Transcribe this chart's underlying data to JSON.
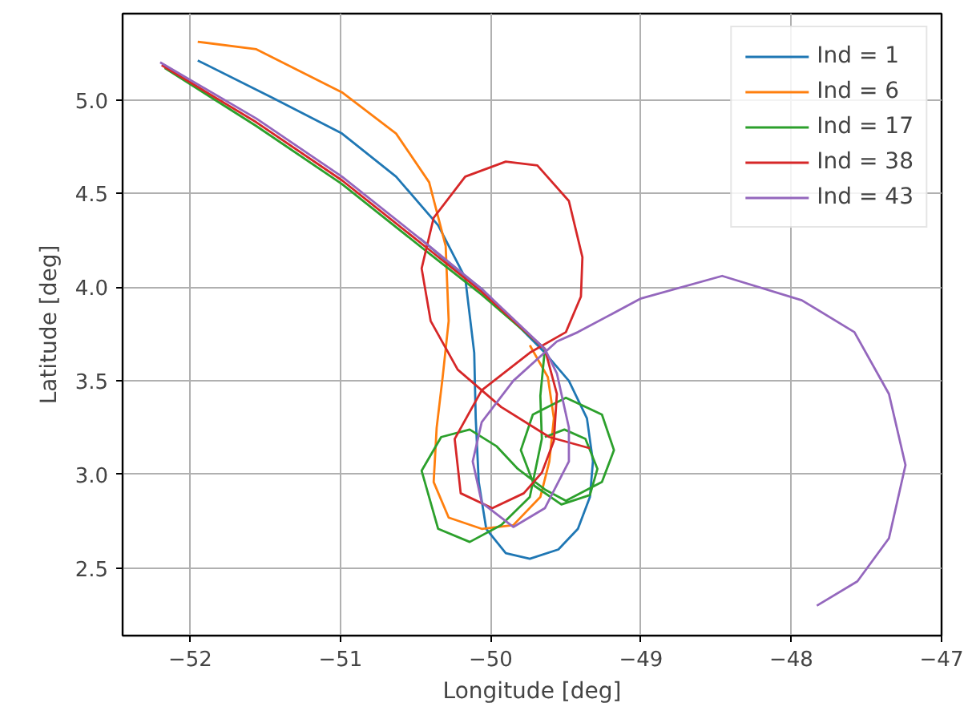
{
  "chart_data": {
    "type": "line",
    "xlabel": "Longitude [deg]",
    "ylabel": "Latitude [deg]",
    "xlim": [
      -52.45,
      -47
    ],
    "ylim": [
      2.14,
      5.46
    ],
    "xticks": [
      {
        "value": -52,
        "label": "−52"
      },
      {
        "value": -51,
        "label": "−51"
      },
      {
        "value": -50,
        "label": "−50"
      },
      {
        "value": -49,
        "label": "−49"
      },
      {
        "value": -48,
        "label": "−48"
      },
      {
        "value": -47,
        "label": "−47"
      }
    ],
    "yticks": [
      2.5,
      {
        "value": 3,
        "label": "3.0"
      },
      3.5,
      {
        "value": 4,
        "label": "4.0"
      },
      4.5,
      {
        "value": 5,
        "label": "5.0"
      }
    ],
    "grid": true,
    "legend": "top right",
    "line_style": "solid",
    "marker": "none",
    "series": [
      {
        "name": "Ind = 1",
        "color": "#1f77b4",
        "x": [
          -51.95,
          -51.45,
          -50.99,
          -50.63,
          -50.35,
          -50.17,
          -50.11,
          -50.1,
          -50.08,
          -50.03,
          -49.9,
          -49.74,
          -49.55,
          -49.42,
          -49.34,
          -49.32,
          -49.36,
          -49.48,
          -49.64,
          -49.85,
          -50.06,
          -50.28,
          -50.47
        ],
        "values": [
          5.21,
          5.01,
          4.82,
          4.59,
          4.33,
          4.05,
          3.65,
          3.3,
          2.96,
          2.71,
          2.58,
          2.55,
          2.6,
          2.71,
          2.88,
          3.07,
          3.3,
          3.5,
          3.65,
          3.82,
          3.99,
          4.13,
          4.26
        ]
      },
      {
        "name": "Ind = 6",
        "color": "#ff7f0e",
        "x": [
          -51.95,
          -51.56,
          -50.99,
          -50.63,
          -50.41,
          -50.3,
          -50.28,
          -50.32,
          -50.36,
          -50.38,
          -50.28,
          -50.06,
          -49.85,
          -49.67,
          -49.61,
          -49.58,
          -49.62,
          -49.74
        ],
        "values": [
          5.31,
          5.27,
          5.04,
          4.82,
          4.56,
          4.22,
          3.82,
          3.52,
          3.25,
          2.96,
          2.77,
          2.71,
          2.73,
          2.88,
          3.07,
          3.3,
          3.52,
          3.69
        ]
      },
      {
        "name": "Ind = 17",
        "color": "#2ca02c",
        "x": [
          -52.17,
          -51.56,
          -50.99,
          -50.41,
          -50.06,
          -49.64,
          -49.67,
          -49.66,
          -49.74,
          -49.93,
          -50.14,
          -50.35,
          -50.46,
          -50.33,
          -50.14,
          -49.96,
          -49.82,
          -49.64,
          -49.5,
          -49.26,
          -49.18,
          -49.26,
          -49.5,
          -49.72,
          -49.8,
          -49.71,
          -49.53,
          -49.34,
          -49.29,
          -49.37,
          -49.51,
          -49.64
        ],
        "values": [
          5.17,
          4.86,
          4.55,
          4.18,
          3.96,
          3.67,
          3.42,
          3.19,
          2.88,
          2.73,
          2.64,
          2.71,
          3.02,
          3.2,
          3.24,
          3.15,
          3.03,
          2.92,
          2.86,
          2.96,
          3.13,
          3.32,
          3.41,
          3.32,
          3.13,
          2.94,
          2.84,
          2.89,
          3.03,
          3.19,
          3.24,
          3.2
        ]
      },
      {
        "name": "Ind = 38",
        "color": "#d62728",
        "x": [
          -52.19,
          -51.56,
          -50.99,
          -50.41,
          -50.06,
          -49.64,
          -49.56,
          -49.58,
          -49.66,
          -49.78,
          -49.99,
          -50.2,
          -50.24,
          -50.06,
          -49.74,
          -49.5,
          -49.4,
          -49.39,
          -49.48,
          -49.69,
          -49.9,
          -50.17,
          -50.38,
          -50.46,
          -50.4,
          -50.22,
          -49.93,
          -49.61,
          -49.34
        ],
        "values": [
          5.185,
          4.88,
          4.57,
          4.2,
          3.975,
          3.67,
          3.43,
          3.18,
          3.01,
          2.9,
          2.82,
          2.9,
          3.19,
          3.45,
          3.65,
          3.76,
          3.95,
          4.16,
          4.46,
          4.65,
          4.67,
          4.59,
          4.37,
          4.1,
          3.82,
          3.56,
          3.36,
          3.2,
          3.14
        ]
      },
      {
        "name": "Ind = 43",
        "color": "#9467bd",
        "x": [
          -52.2,
          -51.56,
          -50.99,
          -50.41,
          -50.06,
          -49.64,
          -49.56,
          -49.48,
          -49.48,
          -49.64,
          -49.85,
          -50.06,
          -50.12,
          -50.06,
          -49.85,
          -49.56,
          -49.42,
          -49.0,
          -48.46,
          -47.93,
          -47.58,
          -47.35,
          -47.24,
          -47.35,
          -47.56,
          -47.83
        ],
        "values": [
          5.2,
          4.9,
          4.59,
          4.22,
          3.99,
          3.67,
          3.54,
          3.25,
          3.07,
          2.82,
          2.72,
          2.85,
          3.07,
          3.28,
          3.5,
          3.71,
          3.76,
          3.94,
          4.06,
          3.93,
          3.76,
          3.43,
          3.05,
          2.66,
          2.43,
          2.3
        ]
      }
    ]
  }
}
